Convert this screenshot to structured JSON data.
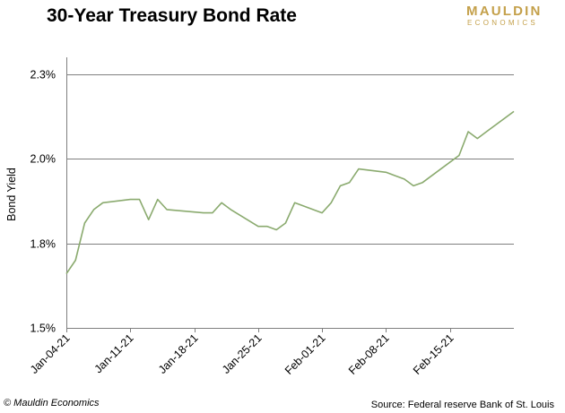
{
  "header": {
    "title": "30-Year Treasury Bond Rate",
    "logo_line1": "MAULDIN",
    "logo_line2": "ECONOMICS"
  },
  "footer": {
    "copyright": "© Mauldin Economics",
    "source": "Source: Federal reserve Bank of St. Louis"
  },
  "colors": {
    "line": "#8aaa6e",
    "grid": "#7f7f7f",
    "logo": "#c4a04a"
  },
  "chart_data": {
    "type": "line",
    "title": "30-Year Treasury Bond Rate",
    "xlabel": "",
    "ylabel": "Bond Yield",
    "ylim": [
      1.5,
      2.3
    ],
    "yticks": [
      1.5,
      1.75,
      2.0,
      2.25
    ],
    "ytick_labels": [
      "1.5%",
      "1.8%",
      "2.0%",
      "2.3%"
    ],
    "xticks": [
      "2021-01-04",
      "2021-01-11",
      "2021-01-18",
      "2021-01-25",
      "2021-02-01",
      "2021-02-08",
      "2021-02-15"
    ],
    "xtick_labels": [
      "Jan-04-21",
      "Jan-11-21",
      "Jan-18-21",
      "Jan-25-21",
      "Feb-01-21",
      "Feb-08-21",
      "Feb-15-21"
    ],
    "xlim": [
      "2021-01-04",
      "2021-02-22"
    ],
    "grid": true,
    "legend": "none",
    "series": [
      {
        "x": [
          "2021-01-04",
          "2021-01-05",
          "2021-01-06",
          "2021-01-07",
          "2021-01-08",
          "2021-01-11",
          "2021-01-12",
          "2021-01-13",
          "2021-01-14",
          "2021-01-15",
          "2021-01-19",
          "2021-01-20",
          "2021-01-21",
          "2021-01-22",
          "2021-01-25",
          "2021-01-26",
          "2021-01-27",
          "2021-01-28",
          "2021-01-29",
          "2021-02-01",
          "2021-02-02",
          "2021-02-03",
          "2021-02-04",
          "2021-02-05",
          "2021-02-08",
          "2021-02-09",
          "2021-02-10",
          "2021-02-11",
          "2021-02-12",
          "2021-02-16",
          "2021-02-17",
          "2021-02-18",
          "2021-02-19",
          "2021-02-22"
        ],
        "values": [
          1.66,
          1.7,
          1.81,
          1.85,
          1.87,
          1.88,
          1.88,
          1.82,
          1.88,
          1.85,
          1.84,
          1.84,
          1.87,
          1.85,
          1.8,
          1.8,
          1.79,
          1.81,
          1.87,
          1.84,
          1.87,
          1.92,
          1.93,
          1.97,
          1.96,
          1.95,
          1.94,
          1.92,
          1.93,
          2.01,
          2.08,
          2.06,
          2.08,
          2.14
        ]
      }
    ]
  }
}
